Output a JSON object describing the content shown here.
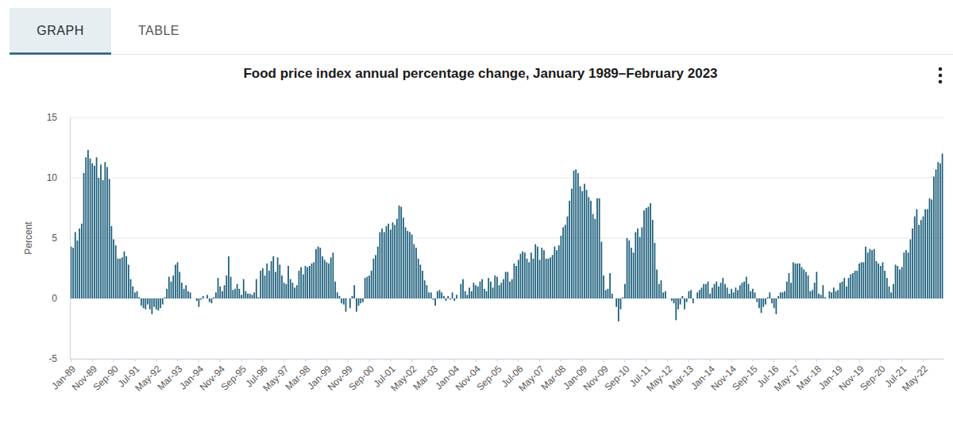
{
  "tabs": [
    "GRAPH",
    "TABLE"
  ],
  "chart_data": {
    "type": "bar",
    "title": "Food price index annual percentage change, January 1989–February 2023",
    "y_label": "Percent",
    "color": "#1b5e7b",
    "grid": true,
    "ylim": [
      -5,
      15
    ],
    "yticks": [
      -5,
      0,
      5,
      10,
      15
    ],
    "categories": [
      "Jan-89",
      null,
      null,
      null,
      null,
      null,
      null,
      null,
      null,
      null,
      "Nov-89",
      null,
      null,
      null,
      null,
      null,
      null,
      null,
      null,
      null,
      "Sep-90",
      null,
      null,
      null,
      null,
      null,
      null,
      null,
      null,
      null,
      "Jul-91",
      null,
      null,
      null,
      null,
      null,
      null,
      null,
      null,
      null,
      "May-92",
      null,
      null,
      null,
      null,
      null,
      null,
      null,
      null,
      null,
      "Mar-93",
      null,
      null,
      null,
      null,
      null,
      null,
      null,
      null,
      null,
      "Jan-94",
      null,
      null,
      null,
      null,
      null,
      null,
      null,
      null,
      null,
      "Nov-94",
      null,
      null,
      null,
      null,
      null,
      null,
      null,
      null,
      null,
      "Sep-95",
      null,
      null,
      null,
      null,
      null,
      null,
      null,
      null,
      null,
      "Jul-96",
      null,
      null,
      null,
      null,
      null,
      null,
      null,
      null,
      null,
      "May-97",
      null,
      null,
      null,
      null,
      null,
      null,
      null,
      null,
      null,
      "Mar-98",
      null,
      null,
      null,
      null,
      null,
      null,
      null,
      null,
      null,
      "Jan-99",
      null,
      null,
      null,
      null,
      null,
      null,
      null,
      null,
      null,
      "Nov-99",
      null,
      null,
      null,
      null,
      null,
      null,
      null,
      null,
      null,
      "Sep-00",
      null,
      null,
      null,
      null,
      null,
      null,
      null,
      null,
      null,
      "Jul-01",
      null,
      null,
      null,
      null,
      null,
      null,
      null,
      null,
      null,
      "May-02",
      null,
      null,
      null,
      null,
      null,
      null,
      null,
      null,
      null,
      "Mar-03",
      null,
      null,
      null,
      null,
      null,
      null,
      null,
      null,
      null,
      "Jan-04",
      null,
      null,
      null,
      null,
      null,
      null,
      null,
      null,
      null,
      "Nov-04",
      null,
      null,
      null,
      null,
      null,
      null,
      null,
      null,
      null,
      "Sep-05",
      null,
      null,
      null,
      null,
      null,
      null,
      null,
      null,
      null,
      "Jul-06",
      null,
      null,
      null,
      null,
      null,
      null,
      null,
      null,
      null,
      "May-07",
      null,
      null,
      null,
      null,
      null,
      null,
      null,
      null,
      null,
      "Mar-08",
      null,
      null,
      null,
      null,
      null,
      null,
      null,
      null,
      null,
      "Jan-09",
      null,
      null,
      null,
      null,
      null,
      null,
      null,
      null,
      null,
      "Nov-09",
      null,
      null,
      null,
      null,
      null,
      null,
      null,
      null,
      null,
      "Sep-10",
      null,
      null,
      null,
      null,
      null,
      null,
      null,
      null,
      null,
      "Jul-11",
      null,
      null,
      null,
      null,
      null,
      null,
      null,
      null,
      null,
      "May-12",
      null,
      null,
      null,
      null,
      null,
      null,
      null,
      null,
      null,
      "Mar-13",
      null,
      null,
      null,
      null,
      null,
      null,
      null,
      null,
      null,
      "Jan-14",
      null,
      null,
      null,
      null,
      null,
      null,
      null,
      null,
      null,
      "Nov-14",
      null,
      null,
      null,
      null,
      null,
      null,
      null,
      null,
      null,
      "Sep-15",
      null,
      null,
      null,
      null,
      null,
      null,
      null,
      null,
      null,
      "Jul-16",
      null,
      null,
      null,
      null,
      null,
      null,
      null,
      null,
      null,
      "May-17",
      null,
      null,
      null,
      null,
      null,
      null,
      null,
      null,
      null,
      "Mar-18",
      null,
      null,
      null,
      null,
      null,
      null,
      null,
      null,
      null,
      "Jan-19",
      null,
      null,
      null,
      null,
      null,
      null,
      null,
      null,
      null,
      "Nov-19",
      null,
      null,
      null,
      null,
      null,
      null,
      null,
      null,
      null,
      "Sep-20",
      null,
      null,
      null,
      null,
      null,
      null,
      null,
      null,
      null,
      "Jul-21",
      null,
      null,
      null,
      null,
      null,
      null,
      null,
      null,
      null,
      "May-22",
      null,
      null,
      null,
      null,
      null,
      null,
      null,
      null,
      null
    ],
    "values": [
      4.3,
      4.2,
      5.5,
      4.8,
      5.8,
      6.2,
      10.4,
      11.7,
      12.3,
      11.6,
      11.2,
      11.0,
      11.7,
      10.0,
      11.1,
      9.8,
      11.3,
      10.9,
      9.9,
      6.0,
      4.9,
      4.4,
      3.3,
      3.3,
      3.4,
      3.9,
      3.5,
      2.8,
      1.6,
      1.0,
      0.5,
      0.6,
      0.1,
      -0.6,
      -0.8,
      -0.9,
      -0.5,
      -0.9,
      -1.3,
      -0.7,
      -0.9,
      -1.0,
      -0.8,
      -0.5,
      0.1,
      0.8,
      1.8,
      1.4,
      1.9,
      2.8,
      3.0,
      2.2,
      1.3,
      0.8,
      1.1,
      0.6,
      0.5,
      0.0,
      0.0,
      -0.2,
      -0.7,
      -0.1,
      0.2,
      0.0,
      0.3,
      -0.3,
      -0.4,
      0.1,
      0.5,
      1.7,
      1.0,
      0.6,
      1.1,
      1.9,
      3.5,
      1.8,
      0.7,
      0.8,
      1.2,
      0.8,
      0.3,
      1.6,
      0.6,
      0.4,
      0.4,
      0.3,
      0.5,
      1.6,
      0.1,
      2.3,
      2.5,
      1.9,
      2.9,
      2.3,
      3.1,
      3.5,
      2.2,
      3.4,
      2.8,
      1.9,
      1.3,
      1.2,
      2.7,
      1.6,
      1.3,
      0.9,
      1.1,
      2.3,
      2.6,
      2.0,
      2.7,
      2.6,
      2.7,
      2.9,
      3.0,
      4.1,
      4.3,
      4.2,
      3.5,
      3.2,
      3.0,
      2.9,
      3.4,
      3.8,
      1.4,
      0.5,
      0.2,
      -0.4,
      -0.5,
      -1.1,
      0.0,
      -0.8,
      0.2,
      1.1,
      -1.1,
      -0.6,
      -0.4,
      -0.3,
      1.7,
      1.8,
      1.9,
      2.3,
      3.3,
      3.6,
      4.3,
      5.5,
      5.8,
      5.5,
      6.0,
      6.2,
      5.7,
      6.3,
      6.1,
      6.6,
      7.7,
      7.6,
      6.7,
      5.9,
      5.6,
      5.5,
      5.3,
      4.5,
      4.2,
      3.3,
      2.8,
      2.3,
      1.5,
      1.1,
      0.5,
      0.5,
      -0.1,
      -0.6,
      0.6,
      0.7,
      0.5,
      0.2,
      -0.2,
      0.2,
      -0.1,
      0.5,
      -0.2,
      0.3,
      0.0,
      1.2,
      1.6,
      0.6,
      0.3,
      0.9,
      0.6,
      1.3,
      1.1,
      1.0,
      1.4,
      1.6,
      0.8,
      0.6,
      1.7,
      1.4,
      0.9,
      1.9,
      1.8,
      1.1,
      1.3,
      1.6,
      2.2,
      2.2,
      1.4,
      1.6,
      2.9,
      2.7,
      3.2,
      3.7,
      3.9,
      3.8,
      3.3,
      3.0,
      3.8,
      3.3,
      4.5,
      4.3,
      3.2,
      4.2,
      4.0,
      3.3,
      3.3,
      3.4,
      3.6,
      4.3,
      4.0,
      4.4,
      5.2,
      5.9,
      6.1,
      6.8,
      8.1,
      9.1,
      10.6,
      10.7,
      10.4,
      9.3,
      8.9,
      9.5,
      9.0,
      8.4,
      8.1,
      7.0,
      6.6,
      8.3,
      8.3,
      4.7,
      1.9,
      0.7,
      0.8,
      2.1,
      0.4,
      0.0,
      -0.7,
      -1.9,
      -0.9,
      0.1,
      1.2,
      5.0,
      4.8,
      4.2,
      3.8,
      5.5,
      5.8,
      5.1,
      5.9,
      7.3,
      7.5,
      7.6,
      7.9,
      6.5,
      4.6,
      2.4,
      1.2,
      1.5,
      0.5,
      0.6,
      0.0,
      0.0,
      -0.2,
      -0.4,
      -1.8,
      -0.9,
      -0.5,
      0.2,
      -0.9,
      -0.3,
      0.6,
      0.7,
      -0.4,
      0.0,
      0.5,
      0.7,
      0.9,
      1.2,
      1.2,
      1.4,
      0.4,
      0.9,
      1.2,
      1.4,
      1.0,
      1.3,
      1.7,
      1.2,
      0.9,
      0.4,
      0.8,
      0.5,
      0.9,
      0.7,
      1.1,
      1.3,
      1.4,
      1.8,
      1.2,
      0.6,
      0.8,
      0.5,
      -0.3,
      -0.8,
      -1.2,
      -0.7,
      -0.5,
      0.1,
      0.5,
      -0.4,
      -0.8,
      -1.3,
      0.2,
      0.5,
      0.5,
      0.6,
      1.4,
      2.1,
      1.3,
      3.0,
      2.9,
      2.9,
      2.9,
      2.6,
      2.4,
      2.2,
      1.9,
      0.6,
      0.7,
      1.3,
      2.2,
      0.4,
      0.3,
      1.1,
      0.1,
      0.0,
      0.6,
      0.5,
      0.9,
      0.6,
      0.7,
      1.3,
      1.4,
      1.7,
      1.0,
      1.7,
      2.0,
      2.1,
      2.3,
      2.3,
      2.9,
      3.0,
      3.0,
      4.3,
      3.8,
      4.1,
      4.0,
      4.1,
      3.1,
      2.9,
      2.7,
      3.0,
      2.3,
      1.7,
      1.0,
      0.5,
      1.2,
      2.8,
      2.7,
      2.4,
      2.6,
      3.8,
      4.0,
      3.8,
      4.9,
      5.8,
      6.8,
      7.4,
      6.1,
      6.5,
      6.8,
      7.4,
      7.4,
      8.3,
      8.2,
      10.1,
      10.7,
      11.3,
      11.2,
      12.0
    ]
  }
}
